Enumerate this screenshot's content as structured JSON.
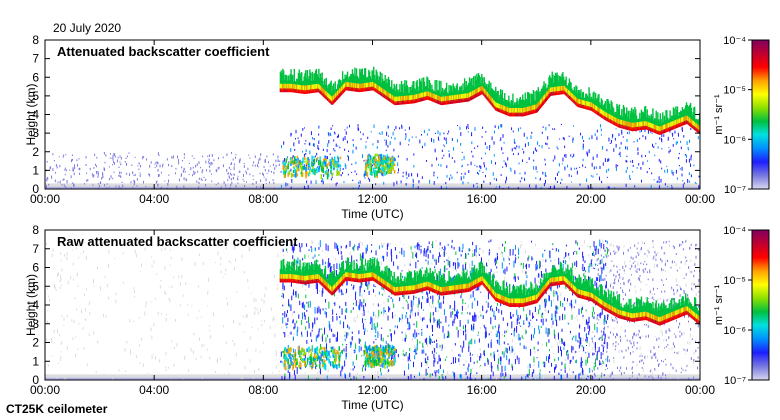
{
  "date": "20 July 2020",
  "footer": "CT25K ceilometer",
  "colors": {
    "background_fill": "#dcdcdc",
    "colorbar_stops": [
      "#d8d8f0",
      "#7878e0",
      "#1e1eff",
      "#0090ff",
      "#00e0e0",
      "#00c040",
      "#8ee000",
      "#ffff00",
      "#ffa000",
      "#ff0000",
      "#c00030",
      "#800060"
    ]
  },
  "chart_data": [
    {
      "type": "heatmap",
      "title": "Attenuated backscatter coefficient",
      "xlabel": "Time (UTC)",
      "ylabel": "Height (km)",
      "xticks": [
        "00:00",
        "04:00",
        "08:00",
        "12:00",
        "16:00",
        "20:00",
        "00:00"
      ],
      "xlim": [
        0,
        24
      ],
      "yticks": [
        "0",
        "1",
        "2",
        "3",
        "4",
        "5",
        "6",
        "7",
        "8"
      ],
      "ylim": [
        0,
        8
      ],
      "colorbar": {
        "label": "m⁻¹ sr⁻¹",
        "ticks": [
          "10⁻⁷",
          "10⁻⁶",
          "10⁻⁵",
          "10⁻⁴"
        ],
        "scale": "log",
        "range": [
          1e-07,
          0.0001
        ]
      },
      "raw_noise": false,
      "layer": [
        [
          8.6,
          5.3
        ],
        [
          9.0,
          5.3
        ],
        [
          9.5,
          5.2
        ],
        [
          10.0,
          5.3
        ],
        [
          10.5,
          4.6
        ],
        [
          11.0,
          5.4
        ],
        [
          11.5,
          5.3
        ],
        [
          12.0,
          5.4
        ],
        [
          12.8,
          4.6
        ],
        [
          13.5,
          4.7
        ],
        [
          14.0,
          4.9
        ],
        [
          14.5,
          4.6
        ],
        [
          15.0,
          4.7
        ],
        [
          15.5,
          4.8
        ],
        [
          16.0,
          5.2
        ],
        [
          16.5,
          4.3
        ],
        [
          17.0,
          4.0
        ],
        [
          17.5,
          4.0
        ],
        [
          18.0,
          4.2
        ],
        [
          18.5,
          5.1
        ],
        [
          19.0,
          5.2
        ],
        [
          19.5,
          4.5
        ],
        [
          20.0,
          4.3
        ],
        [
          20.5,
          3.8
        ],
        [
          21.0,
          3.4
        ],
        [
          21.5,
          3.2
        ],
        [
          22.0,
          3.3
        ],
        [
          22.5,
          3.0
        ],
        [
          23.0,
          3.3
        ],
        [
          23.5,
          3.6
        ],
        [
          24.0,
          3.0
        ]
      ],
      "low_layer_ranges": [
        [
          8.7,
          10.8,
          1.3
        ],
        [
          11.7,
          12.8,
          1.4
        ]
      ]
    },
    {
      "type": "heatmap",
      "title": "Raw attenuated backscatter coefficient",
      "xlabel": "Time (UTC)",
      "ylabel": "Height (km)",
      "xticks": [
        "00:00",
        "04:00",
        "08:00",
        "12:00",
        "16:00",
        "20:00",
        "00:00"
      ],
      "xlim": [
        0,
        24
      ],
      "yticks": [
        "0",
        "1",
        "2",
        "3",
        "4",
        "5",
        "6",
        "7",
        "8"
      ],
      "ylim": [
        0,
        8
      ],
      "colorbar": {
        "label": "m⁻¹ sr⁻¹",
        "ticks": [
          "10⁻⁷",
          "10⁻⁶",
          "10⁻⁵",
          "10⁻⁴"
        ],
        "scale": "log",
        "range": [
          1e-07,
          0.0001
        ]
      },
      "raw_noise": true,
      "layer": [
        [
          8.6,
          5.3
        ],
        [
          9.0,
          5.3
        ],
        [
          9.5,
          5.2
        ],
        [
          10.0,
          5.3
        ],
        [
          10.5,
          4.6
        ],
        [
          11.0,
          5.4
        ],
        [
          11.5,
          5.3
        ],
        [
          12.0,
          5.4
        ],
        [
          12.8,
          4.6
        ],
        [
          13.5,
          4.7
        ],
        [
          14.0,
          4.9
        ],
        [
          14.5,
          4.6
        ],
        [
          15.0,
          4.7
        ],
        [
          15.5,
          4.8
        ],
        [
          16.0,
          5.2
        ],
        [
          16.5,
          4.3
        ],
        [
          17.0,
          4.0
        ],
        [
          17.5,
          4.0
        ],
        [
          18.0,
          4.2
        ],
        [
          18.5,
          5.1
        ],
        [
          19.0,
          5.2
        ],
        [
          19.5,
          4.5
        ],
        [
          20.0,
          4.3
        ],
        [
          20.5,
          3.8
        ],
        [
          21.0,
          3.4
        ],
        [
          21.5,
          3.2
        ],
        [
          22.0,
          3.3
        ],
        [
          22.5,
          3.0
        ],
        [
          23.0,
          3.3
        ],
        [
          23.5,
          3.6
        ],
        [
          24.0,
          3.0
        ]
      ],
      "low_layer_ranges": [
        [
          8.7,
          10.8,
          1.3
        ],
        [
          11.7,
          12.8,
          1.4
        ]
      ]
    }
  ]
}
